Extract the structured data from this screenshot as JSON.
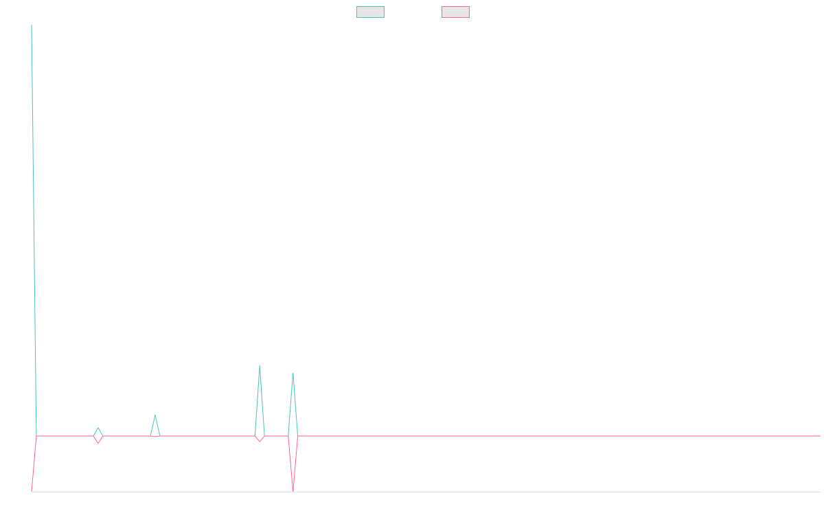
{
  "chart_data": {
    "type": "line",
    "title": "",
    "xlabel": "",
    "ylabel": "",
    "x": [
      0,
      1,
      2,
      3,
      4,
      5,
      6,
      7,
      8,
      9,
      10,
      11,
      12,
      13,
      14,
      15,
      16,
      17,
      18,
      19,
      20,
      21,
      22,
      23,
      24,
      25,
      26,
      27,
      28,
      29,
      30,
      31,
      32,
      33,
      34,
      35,
      36,
      37,
      38,
      39,
      40,
      41,
      42,
      43,
      44,
      45,
      46,
      47,
      48,
      49,
      50,
      51,
      52,
      53,
      54,
      55,
      56,
      57,
      58,
      59,
      60,
      61,
      62,
      63,
      64,
      65,
      66,
      67,
      68,
      69,
      70,
      71,
      72,
      73,
      74,
      75,
      76,
      77,
      78,
      79,
      80,
      81,
      82,
      83,
      84,
      85,
      86,
      87,
      88,
      89,
      90,
      91,
      92,
      93,
      94,
      95,
      96,
      97,
      98,
      99,
      100,
      101,
      102,
      103,
      104,
      105,
      106,
      107,
      108,
      109,
      110,
      111,
      112,
      113,
      114,
      115,
      116,
      117,
      118,
      119,
      120,
      121,
      122,
      123,
      124,
      125,
      126,
      127,
      128,
      129,
      130,
      131,
      132,
      133,
      134,
      135,
      136,
      137,
      138,
      139,
      140,
      141,
      142,
      143,
      144,
      145,
      146,
      147,
      148,
      149,
      150,
      151,
      152,
      153,
      154,
      155,
      156,
      157,
      158,
      159,
      160,
      161,
      162,
      163,
      164,
      165,
      166
    ],
    "ylim": [
      -100,
      740
    ],
    "grid": false,
    "legend_position": "top-center",
    "series": [
      {
        "color": "#4bc0c0",
        "values": [
          740,
          0,
          0,
          0,
          0,
          0,
          0,
          0,
          0,
          0,
          0,
          0,
          0,
          0,
          15,
          0,
          0,
          0,
          0,
          0,
          0,
          0,
          0,
          0,
          0,
          0,
          38,
          0,
          0,
          0,
          0,
          0,
          0,
          0,
          0,
          0,
          0,
          0,
          0,
          0,
          0,
          0,
          0,
          0,
          0,
          0,
          0,
          0,
          127,
          0,
          0,
          0,
          0,
          0,
          0,
          114,
          0,
          0,
          0,
          0,
          0,
          0,
          0,
          0,
          0,
          0,
          0,
          0,
          0,
          0,
          0,
          0,
          0,
          0,
          0,
          0,
          0,
          0,
          0,
          0,
          0,
          0,
          0,
          0,
          0,
          0,
          0,
          0,
          0,
          0,
          0,
          0,
          0,
          0,
          0,
          0,
          0,
          0,
          0,
          0,
          0,
          0,
          0,
          0,
          0,
          0,
          0,
          0,
          0,
          0,
          0,
          0,
          0,
          0,
          0,
          0,
          0,
          0,
          0,
          0,
          0,
          0,
          0,
          0,
          0,
          0,
          0,
          0,
          0,
          0,
          0,
          0,
          0,
          0,
          0,
          0,
          0,
          0,
          0,
          0,
          0,
          0,
          0,
          0,
          0,
          0,
          0,
          0,
          0,
          0,
          0,
          0,
          0,
          0,
          0,
          0,
          0,
          0,
          0,
          0,
          0,
          0,
          0,
          0,
          0,
          0,
          0
        ]
      },
      {
        "color": "#ff6384",
        "values": [
          -100,
          0,
          0,
          0,
          0,
          0,
          0,
          0,
          0,
          0,
          0,
          0,
          0,
          0,
          -13,
          0,
          0,
          0,
          0,
          0,
          0,
          0,
          0,
          0,
          0,
          0,
          -1,
          0,
          0,
          0,
          0,
          0,
          0,
          0,
          0,
          0,
          0,
          0,
          0,
          0,
          0,
          0,
          0,
          0,
          0,
          0,
          0,
          0,
          -10,
          0,
          0,
          0,
          0,
          0,
          0,
          -100,
          0,
          0,
          0,
          0,
          0,
          0,
          0,
          0,
          0,
          0,
          0,
          0,
          0,
          0,
          0,
          0,
          0,
          0,
          0,
          0,
          0,
          0,
          0,
          0,
          0,
          0,
          0,
          0,
          0,
          0,
          0,
          0,
          0,
          0,
          0,
          0,
          0,
          0,
          0,
          0,
          0,
          0,
          0,
          0,
          0,
          0,
          0,
          0,
          0,
          0,
          0,
          0,
          0,
          0,
          0,
          0,
          0,
          0,
          0,
          0,
          0,
          0,
          0,
          0,
          0,
          0,
          0,
          0,
          0,
          0,
          0,
          0,
          0,
          0,
          0,
          0,
          0,
          0,
          0,
          0,
          0,
          0,
          0,
          0,
          0,
          0,
          0,
          0,
          0,
          0,
          0,
          0,
          0,
          0,
          0,
          0,
          0,
          0,
          0,
          0,
          0,
          0,
          0,
          0,
          0,
          0,
          0,
          0,
          0,
          0,
          0
        ]
      }
    ]
  }
}
